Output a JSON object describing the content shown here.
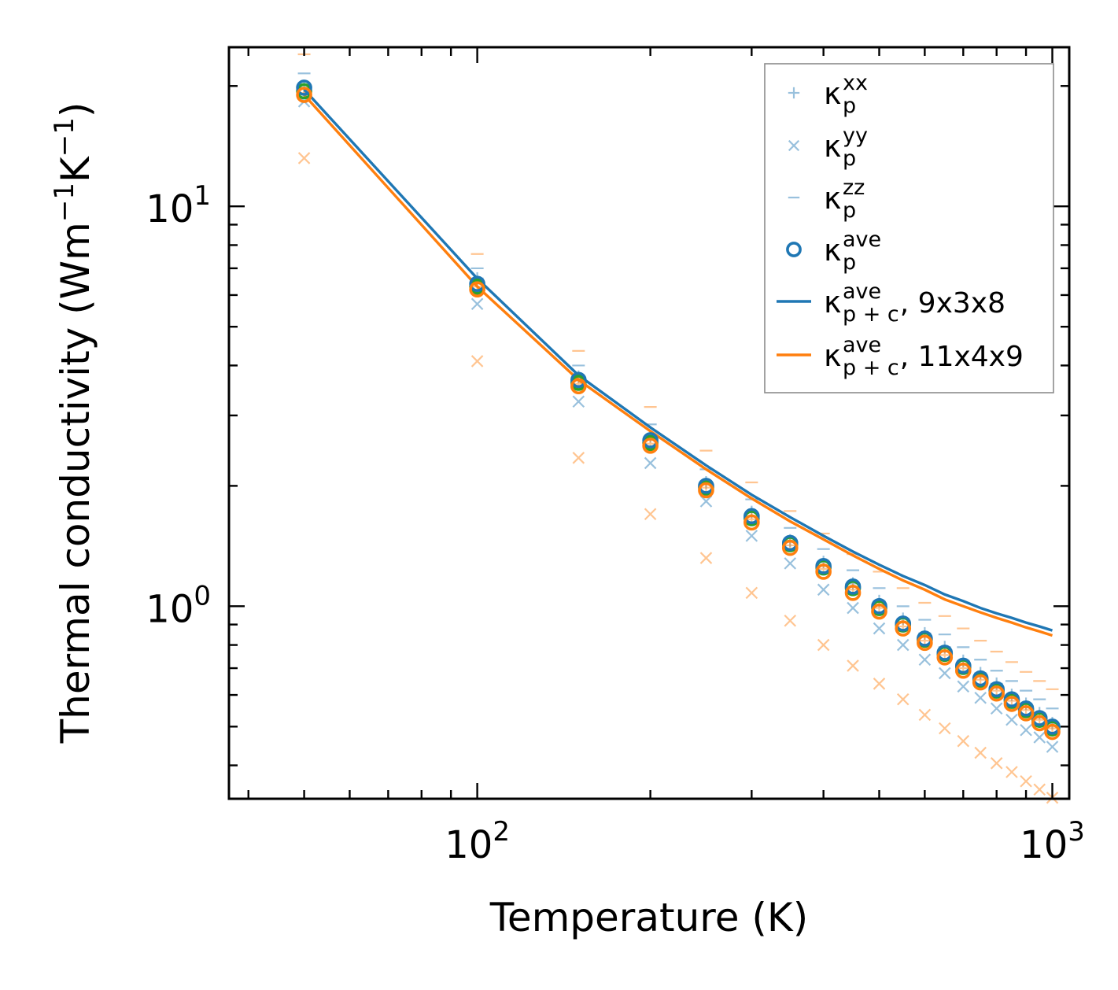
{
  "chart_data": {
    "type": "scatter",
    "title": "",
    "xlabel": "Temperature (K)",
    "ylabel": "Thermal conductivity (Wm",
    "ylabel_unit": {
      "sup1": "−1",
      "mid": "K",
      "sup2": "−1",
      "close": ")"
    },
    "xscale": "log",
    "yscale": "log",
    "xlim": [
      37,
      1070
    ],
    "ylim": [
      0.33,
      25
    ],
    "x_ticks": [
      {
        "value": 100,
        "base": "10",
        "exp": "2"
      },
      {
        "value": 1000,
        "base": "10",
        "exp": "3"
      }
    ],
    "y_ticks": [
      {
        "value": 1,
        "base": "10",
        "exp": "0"
      },
      {
        "value": 10,
        "base": "10",
        "exp": "1"
      }
    ],
    "grid": false,
    "legend_position": "top-right",
    "x": [
      50,
      100,
      150,
      200,
      250,
      300,
      350,
      400,
      450,
      500,
      550,
      600,
      650,
      700,
      750,
      800,
      850,
      900,
      950,
      1000
    ],
    "series": [
      {
        "group": "9x3x8",
        "name": "kappa_p_xx",
        "marker": "plus",
        "color": "#1f77b4",
        "values": [
          19.8,
          6.6,
          3.75,
          2.66,
          2.04,
          1.72,
          1.46,
          1.29,
          1.14,
          1.03,
          0.93,
          0.855,
          0.79,
          0.73,
          0.68,
          0.64,
          0.6,
          0.57,
          0.54,
          0.51
        ]
      },
      {
        "group": "9x3x8",
        "name": "kappa_p_yy",
        "marker": "x",
        "color": "#1f77b4",
        "values": [
          18.3,
          5.7,
          3.25,
          2.28,
          1.83,
          1.5,
          1.28,
          1.1,
          0.99,
          0.88,
          0.8,
          0.735,
          0.68,
          0.63,
          0.59,
          0.555,
          0.52,
          0.49,
          0.47,
          0.445
        ]
      },
      {
        "group": "9x3x8",
        "name": "kappa_p_zz",
        "marker": "dash",
        "color": "#1f77b4",
        "values": [
          21.5,
          7.0,
          4.0,
          2.85,
          2.2,
          1.85,
          1.57,
          1.39,
          1.23,
          1.11,
          1.0,
          0.925,
          0.85,
          0.79,
          0.735,
          0.69,
          0.65,
          0.615,
          0.585,
          0.555
        ]
      },
      {
        "group": "9x3x8",
        "name": "kappa_p_ave",
        "marker": "circle",
        "color": "#1f77b4",
        "values": [
          19.8,
          6.4,
          3.68,
          2.6,
          2.0,
          1.68,
          1.44,
          1.26,
          1.12,
          1.0,
          0.905,
          0.83,
          0.765,
          0.71,
          0.66,
          0.62,
          0.585,
          0.555,
          0.525,
          0.5
        ]
      },
      {
        "group": "11x4x9",
        "name": "kappa_p_xx",
        "marker": "plus",
        "color": "#ff7f0e",
        "values": [
          19.2,
          6.3,
          3.6,
          2.55,
          1.98,
          1.65,
          1.42,
          1.24,
          1.1,
          0.99,
          0.89,
          0.82,
          0.755,
          0.7,
          0.655,
          0.615,
          0.58,
          0.55,
          0.52,
          0.495
        ]
      },
      {
        "group": "11x4x9",
        "name": "kappa_p_yy",
        "marker": "x",
        "color": "#ff7f0e",
        "values": [
          13.2,
          4.1,
          2.35,
          1.7,
          1.32,
          1.08,
          0.92,
          0.8,
          0.71,
          0.64,
          0.585,
          0.535,
          0.495,
          0.46,
          0.43,
          0.405,
          0.385,
          0.365,
          0.348,
          0.332
        ]
      },
      {
        "group": "11x4x9",
        "name": "kappa_p_zz",
        "marker": "dash",
        "color": "#ff7f0e",
        "values": [
          24.0,
          7.6,
          4.35,
          3.15,
          2.45,
          2.04,
          1.73,
          1.52,
          1.35,
          1.22,
          1.11,
          1.02,
          0.945,
          0.88,
          0.82,
          0.77,
          0.725,
          0.685,
          0.65,
          0.62
        ]
      },
      {
        "group": "11x4x9",
        "name": "kappa_p_ave",
        "marker": "circle",
        "color": "#ff7f0e",
        "values": [
          19.0,
          6.2,
          3.55,
          2.52,
          1.95,
          1.62,
          1.4,
          1.22,
          1.08,
          0.97,
          0.88,
          0.81,
          0.745,
          0.69,
          0.645,
          0.605,
          0.57,
          0.54,
          0.51,
          0.485
        ]
      },
      {
        "group": "overlap",
        "name": "kappa_ave_marker_edge",
        "marker": "circle-outline",
        "color": "#2ca02c",
        "values": [
          19.4,
          6.3,
          3.62,
          2.56,
          1.98,
          1.66,
          1.43,
          1.25,
          1.11,
          0.99,
          0.9,
          0.825,
          0.76,
          0.705,
          0.655,
          0.615,
          0.58,
          0.55,
          0.52,
          0.495
        ]
      },
      {
        "group": "9x3x8",
        "name": "kappa_p+c_ave",
        "marker": "line",
        "color": "#1f77b4",
        "values": [
          19.6,
          6.6,
          3.78,
          2.8,
          2.25,
          1.9,
          1.67,
          1.5,
          1.37,
          1.27,
          1.19,
          1.13,
          1.07,
          1.03,
          0.99,
          0.96,
          0.935,
          0.91,
          0.89,
          0.87
        ]
      },
      {
        "group": "11x4x9",
        "name": "kappa_p+c_ave",
        "marker": "line",
        "color": "#ff7f0e",
        "values": [
          19.0,
          6.3,
          3.68,
          2.74,
          2.2,
          1.86,
          1.63,
          1.47,
          1.34,
          1.24,
          1.16,
          1.1,
          1.04,
          1.0,
          0.965,
          0.935,
          0.91,
          0.885,
          0.865,
          0.845
        ]
      }
    ],
    "legend": [
      {
        "marker": "plus",
        "color": "#1f77b4",
        "sym": "κ",
        "sub": "p",
        "sup": "xx",
        "suffix": ""
      },
      {
        "marker": "x",
        "color": "#1f77b4",
        "sym": "κ",
        "sub": "p",
        "sup": "yy",
        "suffix": ""
      },
      {
        "marker": "dash",
        "color": "#1f77b4",
        "sym": "κ",
        "sub": "p",
        "sup": "zz",
        "suffix": ""
      },
      {
        "marker": "circle",
        "color": "#1f77b4",
        "sym": "κ",
        "sub": "p",
        "sup": "ave",
        "suffix": ""
      },
      {
        "marker": "line",
        "color": "#1f77b4",
        "sym": "κ",
        "sub": "p + c",
        "sup": "ave",
        "suffix": ", 9x3x8"
      },
      {
        "marker": "line",
        "color": "#ff7f0e",
        "sym": "κ",
        "sub": "p + c",
        "sup": "ave",
        "suffix": ", 11x4x9"
      }
    ]
  }
}
